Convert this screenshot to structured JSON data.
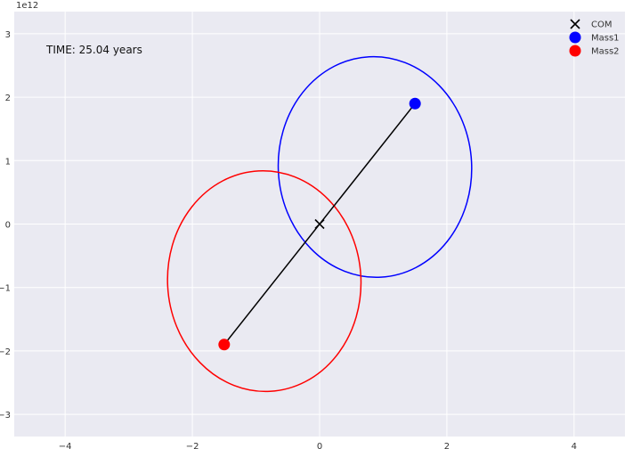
{
  "chart_data": {
    "type": "scatter",
    "title": "",
    "xlabel": "",
    "ylabel": "",
    "xlim": [
      -4.8,
      4.8
    ],
    "ylim": [
      -3.35,
      3.35
    ],
    "x_ticks": [
      -4,
      -2,
      0,
      2,
      4
    ],
    "y_ticks": [
      -3,
      -2,
      -1,
      0,
      1,
      2,
      3
    ],
    "y_offset_label": "1e12",
    "grid": true,
    "background": "#eaeaf2",
    "annotation": "TIME: 25.04 years",
    "orbits": [
      {
        "name": "Mass1",
        "color": "#0000ff",
        "cx": 0.87,
        "cy": 0.9,
        "rx": 1.52,
        "ry": 1.74,
        "theta_deg": 3.0
      },
      {
        "name": "Mass2",
        "color": "#ff0000",
        "cx": -0.87,
        "cy": -0.9,
        "rx": 1.52,
        "ry": 1.74,
        "theta_deg": 3.0
      }
    ],
    "series": [
      {
        "name": "COM",
        "marker": "x",
        "color": "#000000",
        "x": [
          0.0
        ],
        "y": [
          0.0
        ]
      },
      {
        "name": "Mass1",
        "marker": "o",
        "color": "#0000ff",
        "x": [
          1.5
        ],
        "y": [
          1.9
        ]
      },
      {
        "name": "Mass2",
        "marker": "o",
        "color": "#ff0000",
        "x": [
          -1.5
        ],
        "y": [
          -1.9
        ]
      }
    ],
    "connector": {
      "from": [
        -1.5,
        -1.9
      ],
      "to": [
        1.5,
        1.9
      ],
      "color": "#000000"
    },
    "legend_position": "top-right"
  }
}
